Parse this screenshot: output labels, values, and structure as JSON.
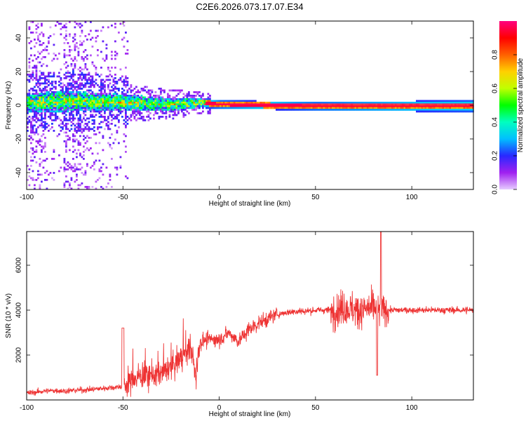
{
  "title": "C2E6.2026.073.17.07.E34",
  "chart_data": [
    {
      "type": "heatmap",
      "xlabel": "Height of straight line (km)",
      "ylabel": "Frequency (Hz)",
      "xlim": [
        -100,
        132
      ],
      "ylim": [
        -50,
        50
      ],
      "xticks": [
        -100,
        -50,
        0,
        50,
        100
      ],
      "yticks": [
        -40,
        -20,
        0,
        20,
        40
      ],
      "colorbar": {
        "label": "Normalized spectral amplitude",
        "range": [
          0,
          1
        ],
        "ticks": [
          "0.0",
          "0.2",
          "0.4",
          "0.6",
          "0.8"
        ],
        "colors": [
          "#e6ccff",
          "#a020f0",
          "#2828ff",
          "#00bfff",
          "#00ffc0",
          "#00ff00",
          "#c0ff00",
          "#ffd000",
          "#ff6000",
          "#ff0000",
          "#ff0080"
        ]
      },
      "ridge": {
        "description_values": [
          {
            "x": -100,
            "center_hz": 2,
            "halfwidth_hz": 6
          },
          {
            "x": -75,
            "center_hz": 3,
            "halfwidth_hz": 6
          },
          {
            "x": -50,
            "center_hz": 2,
            "halfwidth_hz": 5
          },
          {
            "x": -25,
            "center_hz": 1,
            "halfwidth_hz": 4
          },
          {
            "x": -10,
            "center_hz": 2,
            "halfwidth_hz": 3
          },
          {
            "x": 0,
            "center_hz": 1,
            "halfwidth_hz": 2.5
          },
          {
            "x": 50,
            "center_hz": 0,
            "halfwidth_hz": 2.5
          },
          {
            "x": 132,
            "center_hz": 0,
            "halfwidth_hz": 3.5
          }
        ]
      },
      "grid": false
    },
    {
      "type": "line",
      "xlabel": "Height of straight line (km)",
      "ylabel": "SNR (10 * v/v)",
      "xlim": [
        -100,
        132
      ],
      "ylim": [
        0,
        7500
      ],
      "xticks": [
        -100,
        -50,
        0,
        50,
        100
      ],
      "yticks": [
        2000,
        4000,
        6000
      ],
      "color": "#ee3333",
      "series": [
        {
          "x": [
            -100,
            -95,
            -90,
            -85,
            -80,
            -75,
            -70,
            -65,
            -60,
            -55,
            -50,
            -45,
            -40,
            -35,
            -30,
            -25,
            -20,
            -15,
            -12,
            -10,
            -5,
            0,
            5,
            10,
            15,
            20,
            25,
            30,
            35,
            40,
            45,
            50,
            55,
            60,
            65,
            70,
            75,
            80,
            85,
            90,
            95,
            100,
            105,
            110,
            115,
            120,
            125,
            132
          ],
          "y": [
            300,
            350,
            400,
            420,
            400,
            430,
            450,
            480,
            520,
            560,
            600,
            900,
            1100,
            1100,
            1200,
            1400,
            1900,
            2300,
            1000,
            2600,
            2700,
            2700,
            3000,
            2600,
            3100,
            3400,
            3600,
            3800,
            3900,
            3950,
            3950,
            4000,
            4000,
            4000,
            4100,
            4000,
            4000,
            4100,
            4000,
            4000,
            4000,
            4000,
            4000,
            4000,
            4000,
            4000,
            4000,
            4000
          ]
        }
      ],
      "peaks": [
        {
          "x": 84,
          "y": 7500
        },
        {
          "x": 82,
          "y": 1100
        },
        {
          "x": -50,
          "y": 3200
        },
        {
          "x": -10,
          "y": 3400
        }
      ],
      "grid": false
    }
  ]
}
